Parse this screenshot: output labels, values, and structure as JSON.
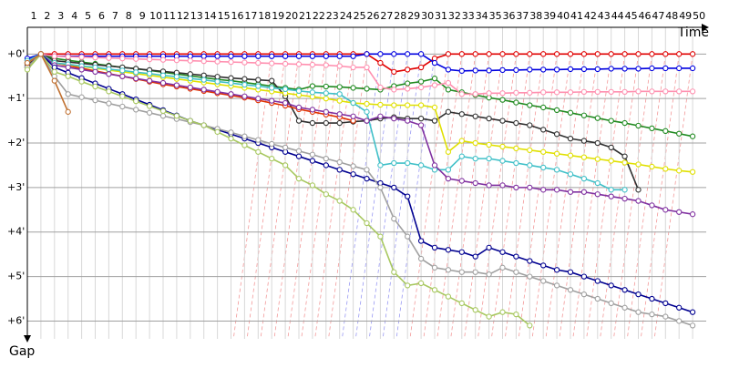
{
  "chart_data": {
    "type": "line",
    "x_label": "Time",
    "y_label": "Gap",
    "x": [
      1,
      2,
      3,
      4,
      5,
      6,
      7,
      8,
      9,
      10,
      11,
      12,
      13,
      14,
      15,
      16,
      17,
      18,
      19,
      20,
      21,
      22,
      23,
      24,
      25,
      26,
      27,
      28,
      29,
      30,
      31,
      32,
      33,
      34,
      35,
      36,
      37,
      38,
      39,
      40,
      41,
      42,
      43,
      44,
      45,
      46,
      47,
      48,
      49,
      50
    ],
    "ylim": [
      -0.6,
      6.4
    ],
    "yticks": [
      {
        "value": 0,
        "label": "+0'"
      },
      {
        "value": 1,
        "label": "+1'"
      },
      {
        "value": 2,
        "label": "+2'"
      },
      {
        "value": 3,
        "label": "+3'"
      },
      {
        "value": 4,
        "label": "+4'"
      },
      {
        "value": 5,
        "label": "+5'"
      },
      {
        "value": 6,
        "label": "+6'"
      }
    ],
    "y_inverted": true,
    "grid": true,
    "series": [
      {
        "color": "#e00000",
        "values": [
          0.15,
          0,
          0,
          0,
          0,
          0,
          0,
          0,
          0,
          0,
          0,
          0,
          0,
          0,
          0,
          0,
          0,
          0,
          0,
          0,
          0,
          0,
          0,
          0,
          0,
          0,
          0.2,
          0.4,
          0.35,
          0.3,
          0.1,
          0,
          0,
          0,
          0,
          0,
          0,
          0,
          0,
          0,
          0,
          0,
          0,
          0,
          0,
          0,
          0,
          0,
          0,
          0
        ]
      },
      {
        "color": "#0000e0",
        "values": [
          0.1,
          0,
          0.05,
          0.05,
          0.05,
          0.05,
          0.05,
          0.05,
          0.05,
          0.05,
          0.05,
          0.05,
          0.05,
          0.05,
          0.05,
          0.05,
          0.05,
          0.05,
          0.05,
          0.05,
          0.05,
          0.05,
          0.05,
          0.05,
          0.05,
          0,
          0,
          0,
          0,
          0,
          0.2,
          0.35,
          0.38,
          0.37,
          0.37,
          0.36,
          0.36,
          0.35,
          0.35,
          0.35,
          0.34,
          0.34,
          0.34,
          0.33,
          0.33,
          0.33,
          0.32,
          0.32,
          0.32,
          0.32
        ]
      },
      {
        "color": "#208a20",
        "values": [
          0.2,
          0,
          0.1,
          0.14,
          0.18,
          0.22,
          0.26,
          0.3,
          0.33,
          0.37,
          0.41,
          0.45,
          0.49,
          0.53,
          0.57,
          0.6,
          0.64,
          0.68,
          0.72,
          0.76,
          0.8,
          0.72,
          0.73,
          0.74,
          0.76,
          0.78,
          0.8,
          0.72,
          0.66,
          0.62,
          0.55,
          0.8,
          0.86,
          0.92,
          0.98,
          1.03,
          1.09,
          1.15,
          1.2,
          1.26,
          1.32,
          1.38,
          1.44,
          1.5,
          1.55,
          1.61,
          1.67,
          1.73,
          1.79,
          1.85
        ]
      },
      {
        "color": "#303030",
        "values": [
          0.25,
          0,
          0.15,
          0.18,
          0.21,
          0.24,
          0.27,
          0.3,
          0.33,
          0.36,
          0.39,
          0.42,
          0.45,
          0.48,
          0.51,
          0.54,
          0.56,
          0.58,
          0.6,
          0.95,
          1.5,
          1.55,
          1.55,
          1.55,
          1.52,
          1.5,
          1.45,
          1.42,
          1.45,
          1.45,
          1.5,
          1.3,
          1.35,
          1.4,
          1.45,
          1.5,
          1.55,
          1.6,
          1.7,
          1.8,
          1.9,
          1.95,
          2.0,
          2.1,
          2.3,
          3.05,
          null,
          null,
          null,
          null
        ]
      },
      {
        "color": "#e03000",
        "values": [
          0.3,
          0,
          0.2,
          0.26,
          0.32,
          0.38,
          0.44,
          0.5,
          0.56,
          0.62,
          0.68,
          0.73,
          0.78,
          0.83,
          0.88,
          0.93,
          0.98,
          1.04,
          1.1,
          1.16,
          1.24,
          1.3,
          1.36,
          1.42,
          1.5,
          null,
          null,
          null,
          null,
          null,
          null,
          null,
          null,
          null,
          null,
          null,
          null,
          null,
          null,
          null,
          null,
          null,
          null,
          null,
          null,
          null,
          null,
          null,
          null,
          null
        ]
      },
      {
        "color": "#e0e000",
        "values": [
          0.2,
          0,
          0.2,
          0.24,
          0.28,
          0.32,
          0.36,
          0.4,
          0.44,
          0.48,
          0.52,
          0.56,
          0.6,
          0.64,
          0.68,
          0.72,
          0.76,
          0.8,
          0.84,
          0.88,
          0.92,
          0.96,
          1.0,
          1.05,
          1.1,
          1.12,
          1.14,
          1.15,
          1.15,
          1.15,
          1.2,
          2.2,
          1.95,
          2.0,
          2.04,
          2.08,
          2.12,
          2.16,
          2.2,
          2.24,
          2.28,
          2.32,
          2.36,
          2.4,
          2.44,
          2.48,
          2.53,
          2.58,
          2.62,
          2.65
        ]
      },
      {
        "color": "#40c0c8",
        "values": [
          0.15,
          0,
          0.2,
          0.23,
          0.27,
          0.3,
          0.34,
          0.37,
          0.41,
          0.44,
          0.48,
          0.51,
          0.55,
          0.58,
          0.62,
          0.65,
          0.69,
          0.72,
          0.76,
          0.79,
          0.83,
          0.86,
          0.88,
          0.9,
          1.1,
          1.3,
          2.5,
          2.45,
          2.45,
          2.5,
          2.6,
          2.6,
          2.3,
          2.35,
          2.35,
          2.4,
          2.45,
          2.5,
          2.55,
          2.6,
          2.7,
          2.8,
          2.9,
          3.05,
          3.05,
          null,
          null,
          null,
          null,
          null
        ]
      },
      {
        "color": "#8030a0",
        "values": [
          0.2,
          0,
          0.25,
          0.3,
          0.35,
          0.4,
          0.45,
          0.5,
          0.55,
          0.6,
          0.65,
          0.7,
          0.75,
          0.8,
          0.85,
          0.9,
          0.95,
          1.0,
          1.05,
          1.1,
          1.2,
          1.25,
          1.3,
          1.35,
          1.4,
          1.5,
          1.4,
          1.45,
          1.5,
          1.6,
          2.5,
          2.8,
          2.85,
          2.9,
          2.95,
          2.95,
          3.0,
          3.0,
          3.05,
          3.05,
          3.1,
          3.1,
          3.15,
          3.2,
          3.25,
          3.3,
          3.4,
          3.5,
          3.55,
          3.6
        ]
      },
      {
        "color": "#000090",
        "values": [
          0.3,
          0,
          0.3,
          0.42,
          0.54,
          0.66,
          0.78,
          0.9,
          1.02,
          1.14,
          1.26,
          1.38,
          1.5,
          1.6,
          1.7,
          1.8,
          1.9,
          2.0,
          2.1,
          2.2,
          2.3,
          2.4,
          2.5,
          2.6,
          2.7,
          2.8,
          2.9,
          3.0,
          3.2,
          4.2,
          4.35,
          4.4,
          4.45,
          4.55,
          4.35,
          4.45,
          4.55,
          4.65,
          4.75,
          4.85,
          4.9,
          5.0,
          5.1,
          5.2,
          5.3,
          5.4,
          5.5,
          5.6,
          5.7,
          5.8
        ]
      },
      {
        "color": "#a0a0a0",
        "values": [
          0.3,
          0,
          0.5,
          0.9,
          0.97,
          1.04,
          1.11,
          1.18,
          1.25,
          1.32,
          1.39,
          1.46,
          1.53,
          1.6,
          1.68,
          1.76,
          1.85,
          1.93,
          2.02,
          2.1,
          2.18,
          2.26,
          2.35,
          2.43,
          2.52,
          2.6,
          3.0,
          3.7,
          4.1,
          4.6,
          4.8,
          4.85,
          4.9,
          4.9,
          4.95,
          4.8,
          4.9,
          5.0,
          5.1,
          5.2,
          5.3,
          5.4,
          5.5,
          5.6,
          5.7,
          5.8,
          5.85,
          5.9,
          6.0,
          6.1
        ]
      },
      {
        "color": "#a8c860",
        "values": [
          0.35,
          0,
          0.4,
          0.5,
          0.62,
          0.73,
          0.84,
          0.95,
          1.06,
          1.17,
          1.28,
          1.39,
          1.5,
          1.6,
          1.75,
          1.9,
          2.05,
          2.2,
          2.35,
          2.5,
          2.8,
          2.95,
          3.15,
          3.3,
          3.5,
          3.8,
          4.1,
          4.9,
          5.2,
          5.15,
          5.3,
          5.45,
          5.6,
          5.75,
          5.9,
          5.8,
          5.85,
          6.1,
          null,
          null,
          null,
          null,
          null,
          null,
          null,
          null,
          null,
          null,
          null,
          null
        ]
      },
      {
        "color": "#ff90b0",
        "values": [
          0.2,
          0,
          0.05,
          0.06,
          0.07,
          0.08,
          0.09,
          0.1,
          0.11,
          0.12,
          0.13,
          0.14,
          0.15,
          0.16,
          0.17,
          0.18,
          0.19,
          0.2,
          0.21,
          0.22,
          0.23,
          0.24,
          0.25,
          0.27,
          0.3,
          0.3,
          0.75,
          0.8,
          0.78,
          0.75,
          0.7,
          0.65,
          0.9,
          0.9,
          0.88,
          0.88,
          0.87,
          0.87,
          0.86,
          0.86,
          0.86,
          0.85,
          0.85,
          0.85,
          0.85,
          0.84,
          0.84,
          0.84,
          0.84,
          0.84
        ]
      },
      {
        "color": "#c07030",
        "values": [
          0.2,
          0,
          0.6,
          1.3,
          null,
          null,
          null,
          null,
          null,
          null,
          null,
          null,
          null,
          null,
          null,
          null,
          null,
          null,
          null,
          null,
          null,
          null,
          null,
          null,
          null,
          null,
          null,
          null,
          null,
          null,
          null,
          null,
          null,
          null,
          null,
          null,
          null,
          null,
          null,
          null,
          null,
          null,
          null,
          null,
          null,
          null,
          null,
          null,
          null,
          null
        ]
      }
    ]
  }
}
